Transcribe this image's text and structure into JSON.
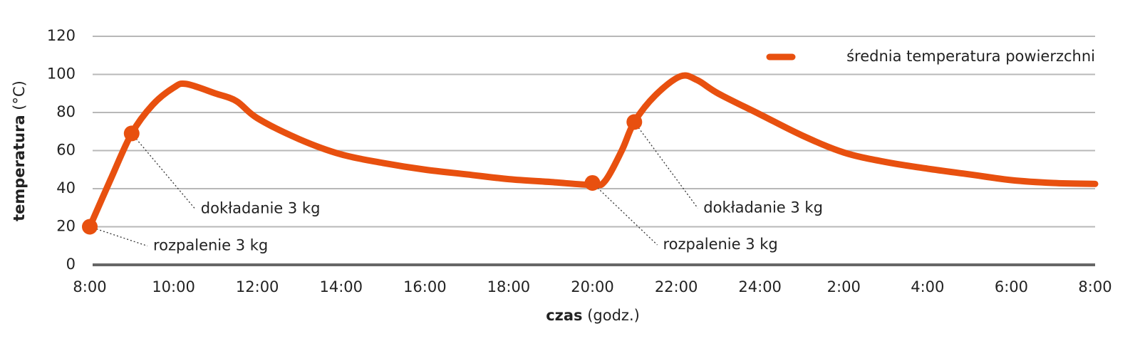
{
  "chart_data": {
    "type": "line",
    "ylabel": "temperatura",
    "yunit": "(°C)",
    "xlabel": "czas",
    "xunit": "(godz.)",
    "xlim": [
      8,
      32
    ],
    "ylim": [
      0,
      120
    ],
    "yticks": [
      0,
      20,
      40,
      60,
      80,
      100,
      120
    ],
    "xticks": [
      {
        "value": 8,
        "label": "8:00"
      },
      {
        "value": 10,
        "label": "10:00"
      },
      {
        "value": 12,
        "label": "12:00"
      },
      {
        "value": 14,
        "label": "14:00"
      },
      {
        "value": 16,
        "label": "16:00"
      },
      {
        "value": 18,
        "label": "18:00"
      },
      {
        "value": 20,
        "label": "20:00"
      },
      {
        "value": 22,
        "label": "22:00"
      },
      {
        "value": 24,
        "label": "24:00"
      },
      {
        "value": 26,
        "label": "2:00"
      },
      {
        "value": 28,
        "label": "4:00"
      },
      {
        "value": 30,
        "label": "6:00"
      },
      {
        "value": 32,
        "label": "8:00"
      }
    ],
    "grid": true,
    "legend": "top-right",
    "x": [
      8,
      8.5,
      9,
      9.5,
      10,
      10.3,
      11,
      11.5,
      12,
      13,
      14,
      15,
      16,
      17,
      18,
      19,
      20,
      20.3,
      20.7,
      21,
      21.5,
      22.1,
      22.5,
      23,
      24,
      25,
      26,
      27,
      28,
      29,
      30,
      31,
      32
    ],
    "series": [
      {
        "name": "średnia temperatura powierzchni",
        "color": "#e8500f",
        "values": [
          20,
          45,
          69,
          84,
          93,
          95,
          90,
          86,
          77,
          66,
          58,
          53.5,
          50,
          47.5,
          45,
          43.5,
          42,
          44,
          60,
          75,
          89,
          99,
          97,
          90,
          79,
          68,
          59,
          54,
          50.5,
          47.5,
          44.5,
          43,
          42.5
        ]
      }
    ],
    "annotations": [
      {
        "text": "rozpalenie 3 kg",
        "x": 8,
        "y": 20
      },
      {
        "text": "dokładanie 3 kg",
        "x": 9,
        "y": 69
      },
      {
        "text": "rozpalenie 3 kg",
        "x": 20,
        "y": 43
      },
      {
        "text": "dokładanie 3 kg",
        "x": 21,
        "y": 75
      }
    ]
  }
}
